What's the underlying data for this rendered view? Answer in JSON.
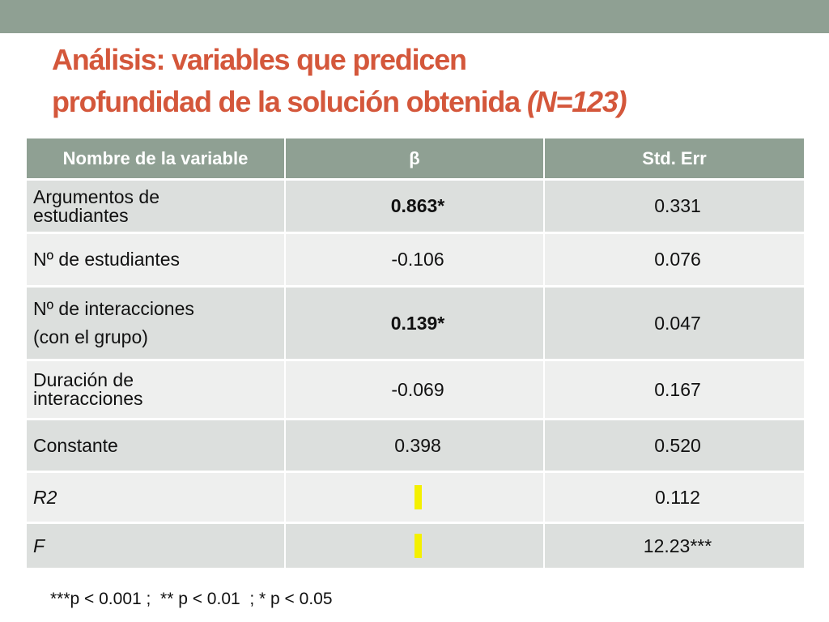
{
  "title": {
    "line1": "Análisis: variables que predicen",
    "line2_main": "profundidad de la solución obtenida ",
    "line2_italic": "(N=123)"
  },
  "table": {
    "headers": [
      "Nombre de la variable",
      "β",
      "Std. Err"
    ],
    "rows": [
      {
        "name_l1": "Argumentos de",
        "name_l2": "estudiantes",
        "beta": "0.863*",
        "se": "0.331"
      },
      {
        "name": "Nº de estudiantes",
        "beta": "-0.106",
        "se": "0.076"
      },
      {
        "name_l1": "Nº de interacciones",
        "name_l2": "(con el grupo)",
        "beta": "0.139*",
        "se": "0.047"
      },
      {
        "name_l1": "Duración de",
        "name_l2": "interacciones",
        "beta": "-0.069",
        "se": "0.167"
      },
      {
        "name": "Constante",
        "beta": "0.398",
        "se": "0.520"
      },
      {
        "name": "R2",
        "se": "0.112"
      },
      {
        "name": "F",
        "se": "12.23***"
      }
    ]
  },
  "highlight_color": "#f4f000",
  "accent_color": "#d4573b",
  "header_color": "#8fa093",
  "footnote": "***p < 0.001 ;  ** p < 0.01  ; * p < 0.05"
}
